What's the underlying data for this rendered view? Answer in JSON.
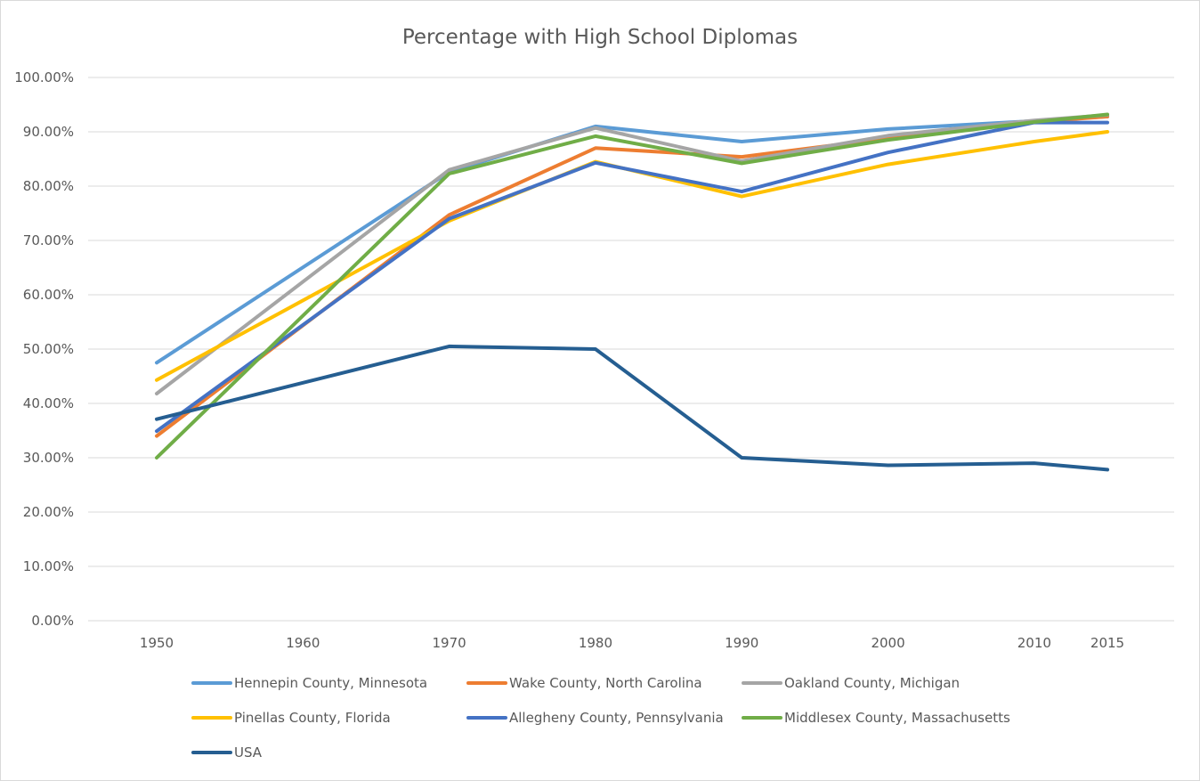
{
  "chart_data": {
    "type": "line",
    "title": "Percentage with High School Diplomas",
    "xlabel": "",
    "ylabel": "",
    "categories": [
      "1950",
      "1960",
      "1970",
      "1980",
      "1990",
      "2000",
      "2010",
      "2015"
    ],
    "x": [
      1950,
      1960,
      1970,
      1980,
      1990,
      2000,
      2010,
      2015
    ],
    "ylim": [
      0,
      1
    ],
    "yticks": [
      "0.00%",
      "10.00%",
      "20.00%",
      "30.00%",
      "40.00%",
      "50.00%",
      "60.00%",
      "70.00%",
      "80.00%",
      "90.00%",
      "100.00%"
    ],
    "grid": true,
    "legend_position": "bottom",
    "series": [
      {
        "name": "Hennepin County, Minnesota",
        "color": "#5B9BD5",
        "values": [
          0.475,
          null,
          0.826,
          0.91,
          0.882,
          0.905,
          0.92,
          0.928
        ]
      },
      {
        "name": "Wake County, North Carolina",
        "color": "#ED7D31",
        "values": [
          0.34,
          null,
          0.747,
          0.87,
          0.854,
          0.888,
          0.918,
          0.928
        ]
      },
      {
        "name": "Oakland County, Michigan",
        "color": "#A5A5A5",
        "values": [
          0.418,
          null,
          0.83,
          0.907,
          0.846,
          0.893,
          0.921,
          0.931
        ]
      },
      {
        "name": "Pinellas County, Florida",
        "color": "#FFC000",
        "values": [
          0.443,
          null,
          0.736,
          0.845,
          0.781,
          0.84,
          0.882,
          0.9
        ]
      },
      {
        "name": "Allegheny County, Pennsylvania",
        "color": "#4472C4",
        "values": [
          0.349,
          null,
          0.74,
          0.843,
          0.79,
          0.862,
          0.917,
          0.917
        ]
      },
      {
        "name": "Middlesex County, Massachusetts",
        "color": "#70AD47",
        "values": [
          0.3,
          null,
          0.823,
          0.892,
          0.842,
          0.885,
          0.918,
          0.932
        ]
      },
      {
        "name": "USA",
        "color": "#255E91",
        "values": [
          0.371,
          null,
          0.505,
          0.5,
          0.3,
          0.286,
          0.29,
          0.278
        ]
      }
    ]
  }
}
